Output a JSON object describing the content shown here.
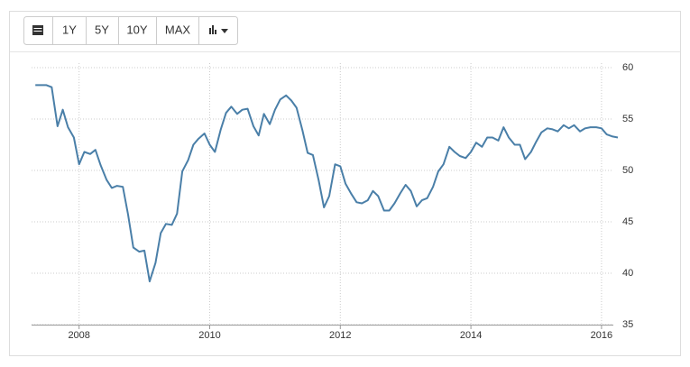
{
  "toolbar": {
    "buttons": [
      "1Y",
      "5Y",
      "10Y",
      "MAX"
    ]
  },
  "chart_data": {
    "type": "line",
    "x": [
      2007.33,
      2007.42,
      2007.5,
      2007.58,
      2007.67,
      2007.75,
      2007.83,
      2007.92,
      2008,
      2008.08,
      2008.17,
      2008.25,
      2008.33,
      2008.42,
      2008.5,
      2008.58,
      2008.67,
      2008.75,
      2008.83,
      2008.92,
      2009,
      2009.08,
      2009.17,
      2009.25,
      2009.33,
      2009.42,
      2009.5,
      2009.58,
      2009.67,
      2009.75,
      2009.83,
      2009.92,
      2010,
      2010.08,
      2010.17,
      2010.25,
      2010.33,
      2010.42,
      2010.5,
      2010.58,
      2010.67,
      2010.75,
      2010.83,
      2010.92,
      2011,
      2011.08,
      2011.17,
      2011.25,
      2011.33,
      2011.42,
      2011.5,
      2011.58,
      2011.67,
      2011.75,
      2011.83,
      2011.92,
      2012,
      2012.08,
      2012.17,
      2012.25,
      2012.33,
      2012.42,
      2012.5,
      2012.58,
      2012.67,
      2012.75,
      2012.83,
      2012.92,
      2013,
      2013.08,
      2013.17,
      2013.25,
      2013.33,
      2013.42,
      2013.5,
      2013.58,
      2013.67,
      2013.75,
      2013.83,
      2013.92,
      2014,
      2014.08,
      2014.17,
      2014.25,
      2014.33,
      2014.42,
      2014.5,
      2014.58,
      2014.67,
      2014.75,
      2014.83,
      2014.92,
      2015,
      2015.08,
      2015.17,
      2015.25,
      2015.33,
      2015.42,
      2015.5,
      2015.58,
      2015.67,
      2015.75,
      2015.83,
      2015.92,
      2016,
      2016.08,
      2016.17,
      2016.25
    ],
    "series": [
      {
        "color": "#4a7fa8",
        "values": [
          58.3,
          58.3,
          58.3,
          58.1,
          54.3,
          55.9,
          54.2,
          53.2,
          50.6,
          51.8,
          51.6,
          52.0,
          50.5,
          49.1,
          48.3,
          48.5,
          48.4,
          45.7,
          42.5,
          42.1,
          42.2,
          39.2,
          41.0,
          43.9,
          44.8,
          44.7,
          45.8,
          49.9,
          51.0,
          52.5,
          53.1,
          53.6,
          52.5,
          51.8,
          54.0,
          55.6,
          56.2,
          55.5,
          55.9,
          56.0,
          54.3,
          53.4,
          55.5,
          54.5,
          55.9,
          56.9,
          57.3,
          56.8,
          56.1,
          53.9,
          51.7,
          51.5,
          49.0,
          46.4,
          47.5,
          50.6,
          50.4,
          48.7,
          47.7,
          46.9,
          46.8,
          47.1,
          48.0,
          47.5,
          46.1,
          46.1,
          46.8,
          47.8,
          48.6,
          48.0,
          46.5,
          47.1,
          47.3,
          48.4,
          49.9,
          50.6,
          52.3,
          51.8,
          51.4,
          51.2,
          51.8,
          52.7,
          52.3,
          53.2,
          53.2,
          52.9,
          54.2,
          53.2,
          52.5,
          52.5,
          51.1,
          51.8,
          52.8,
          53.7,
          54.1,
          54.0,
          53.8,
          54.4,
          54.1,
          54.4,
          53.8,
          54.1,
          54.2,
          54.2,
          54.1,
          53.5,
          53.3,
          53.2
        ]
      }
    ],
    "xlim": [
      2007.3,
      2016.25
    ],
    "xticks": [
      2008,
      2010,
      2012,
      2014,
      2016
    ],
    "ylim": [
      35,
      60
    ],
    "yticks": [
      35,
      40,
      45,
      50,
      55,
      60
    ],
    "grid": true
  }
}
